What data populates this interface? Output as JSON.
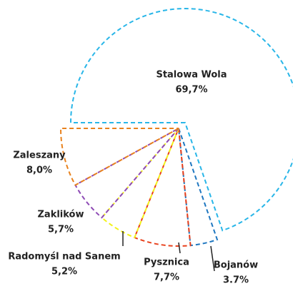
{
  "chart_data": {
    "type": "pie",
    "categories": [
      "Stalowa Wola",
      "Bojanów",
      "Pysznica",
      "Radomyśl nad Sanem",
      "Zaklików",
      "Zaleszany"
    ],
    "values": [
      69.7,
      3.7,
      7.7,
      5.2,
      5.7,
      8.0
    ],
    "value_labels": [
      "69,7%",
      "3.7%",
      "7,7%",
      "5,2%",
      "5,7%",
      "8,0%"
    ],
    "colors": [
      "#29b6e8",
      "#1f77c0",
      "#e8401c",
      "#f2f21a",
      "#8e4bb5",
      "#e8821e"
    ]
  }
}
